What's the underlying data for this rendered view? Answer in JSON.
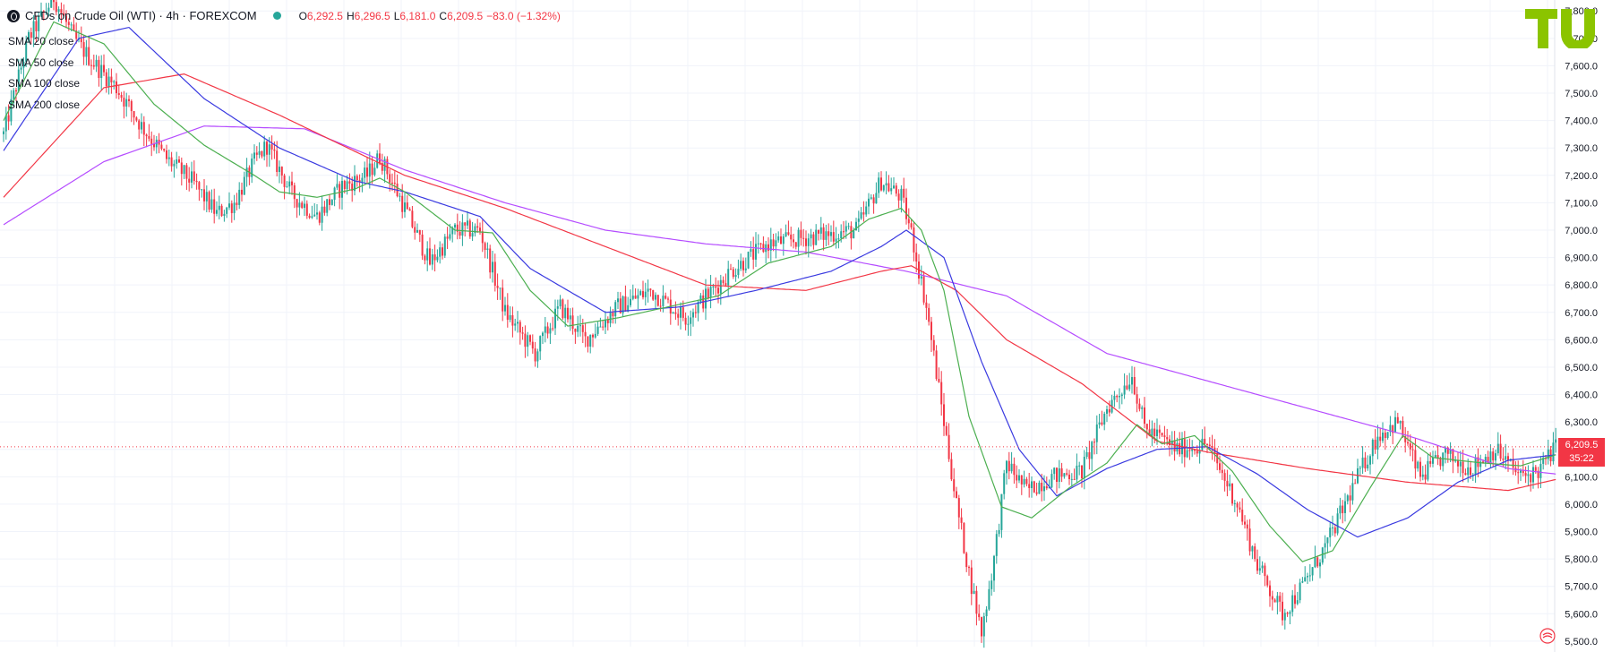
{
  "header": {
    "title": "CFDs on Crude Oil (WTI) · 4h · FOREXCOM",
    "ohlc": [
      {
        "key": "O",
        "value": "6,292.5"
      },
      {
        "key": "H",
        "value": "6,296.5"
      },
      {
        "key": "L",
        "value": "6,181.0"
      },
      {
        "key": "C",
        "value": "6,209.5"
      },
      {
        "key": "",
        "value": "−83.0 (−1.32%)"
      }
    ]
  },
  "legend": [
    "SMA 20 close",
    "SMA 50 close",
    "SMA 100 close",
    "SMA 200 close"
  ],
  "price_tag": {
    "price": "6,209.5",
    "countdown": "35:22"
  },
  "colors": {
    "up": "#26a69a",
    "down": "#f23645",
    "sma20": "#4caf50",
    "sma50": "#3a3ae0",
    "sma100": "#f23645",
    "sma200": "#b54cff",
    "grid": "#f0f3fa",
    "logo": "#8bc400"
  },
  "icons": {
    "logo": "tradingview-logo-icon",
    "settings": "chart-settings-icon"
  },
  "chart_data": {
    "type": "candlestick",
    "title": "CFDs on Crude Oil (WTI) · 4h · FOREXCOM",
    "ylim": [
      5480,
      7840
    ],
    "y_ticks": [
      5500,
      5600,
      5700,
      5800,
      5900,
      6000,
      6100,
      6200,
      6300,
      6400,
      6500,
      6600,
      6700,
      6800,
      6900,
      7000,
      7100,
      7200,
      7300,
      7400,
      7500,
      7600,
      7700,
      7800
    ],
    "y_tick_labels": [
      "5,500.0",
      "5,600.0",
      "5,700.0",
      "5,800.0",
      "5,900.0",
      "6,000.0",
      "6,100.0",
      "6,200.0",
      "6,300.0",
      "6,400.0",
      "6,500.0",
      "6,600.0",
      "6,700.0",
      "6,800.0",
      "6,900.0",
      "7,000.0",
      "7,100.0",
      "7,200.0",
      "7,300.0",
      "7,400.0",
      "7,500.0",
      "7,600.0",
      "7,700.0",
      "7,800.0"
    ],
    "last_price": 6209.5,
    "close_path": [
      [
        0,
        7350
      ],
      [
        10,
        7700
      ],
      [
        20,
        7850
      ],
      [
        28,
        7700
      ],
      [
        35,
        7620
      ],
      [
        45,
        7520
      ],
      [
        55,
        7380
      ],
      [
        65,
        7260
      ],
      [
        75,
        7180
      ],
      [
        85,
        7060
      ],
      [
        92,
        7100
      ],
      [
        100,
        7250
      ],
      [
        105,
        7310
      ],
      [
        115,
        7130
      ],
      [
        125,
        7050
      ],
      [
        135,
        7160
      ],
      [
        145,
        7200
      ],
      [
        150,
        7270
      ],
      [
        160,
        7080
      ],
      [
        170,
        6880
      ],
      [
        180,
        7000
      ],
      [
        190,
        7000
      ],
      [
        200,
        6700
      ],
      [
        212,
        6550
      ],
      [
        222,
        6720
      ],
      [
        232,
        6600
      ],
      [
        245,
        6720
      ],
      [
        258,
        6780
      ],
      [
        272,
        6680
      ],
      [
        290,
        6850
      ],
      [
        305,
        6950
      ],
      [
        325,
        6980
      ],
      [
        340,
        7000
      ],
      [
        350,
        7180
      ],
      [
        358,
        7120
      ],
      [
        362,
        6990
      ],
      [
        368,
        6720
      ],
      [
        375,
        6300
      ],
      [
        380,
        6000
      ],
      [
        385,
        5750
      ],
      [
        390,
        5530
      ],
      [
        395,
        5800
      ],
      [
        400,
        6150
      ],
      [
        408,
        6050
      ],
      [
        418,
        6100
      ],
      [
        430,
        6120
      ],
      [
        440,
        6350
      ],
      [
        450,
        6470
      ],
      [
        455,
        6280
      ],
      [
        468,
        6200
      ],
      [
        480,
        6220
      ],
      [
        492,
        6000
      ],
      [
        500,
        5780
      ],
      [
        510,
        5600
      ],
      [
        518,
        5700
      ],
      [
        528,
        5860
      ],
      [
        540,
        6100
      ],
      [
        548,
        6250
      ],
      [
        556,
        6300
      ],
      [
        565,
        6100
      ],
      [
        575,
        6180
      ],
      [
        585,
        6130
      ],
      [
        595,
        6200
      ],
      [
        605,
        6100
      ],
      [
        612,
        6120
      ],
      [
        619,
        6210
      ]
    ],
    "sma200_path": [
      [
        0,
        7020
      ],
      [
        40,
        7250
      ],
      [
        80,
        7380
      ],
      [
        120,
        7370
      ],
      [
        160,
        7220
      ],
      [
        200,
        7100
      ],
      [
        240,
        7000
      ],
      [
        280,
        6950
      ],
      [
        320,
        6920
      ],
      [
        360,
        6850
      ],
      [
        400,
        6760
      ],
      [
        440,
        6550
      ],
      [
        480,
        6450
      ],
      [
        520,
        6350
      ],
      [
        560,
        6250
      ],
      [
        600,
        6130
      ],
      [
        619,
        6110
      ]
    ],
    "sma100_path": [
      [
        0,
        7120
      ],
      [
        40,
        7520
      ],
      [
        72,
        7570
      ],
      [
        110,
        7420
      ],
      [
        160,
        7200
      ],
      [
        200,
        7080
      ],
      [
        240,
        6940
      ],
      [
        280,
        6800
      ],
      [
        320,
        6780
      ],
      [
        350,
        6850
      ],
      [
        362,
        6870
      ],
      [
        380,
        6780
      ],
      [
        400,
        6600
      ],
      [
        430,
        6440
      ],
      [
        460,
        6230
      ],
      [
        480,
        6190
      ],
      [
        520,
        6130
      ],
      [
        560,
        6080
      ],
      [
        600,
        6050
      ],
      [
        619,
        6090
      ]
    ],
    "sma50_path": [
      [
        0,
        7290
      ],
      [
        30,
        7700
      ],
      [
        50,
        7740
      ],
      [
        80,
        7480
      ],
      [
        110,
        7300
      ],
      [
        140,
        7180
      ],
      [
        160,
        7140
      ],
      [
        190,
        7050
      ],
      [
        210,
        6860
      ],
      [
        240,
        6700
      ],
      [
        270,
        6720
      ],
      [
        300,
        6780
      ],
      [
        330,
        6850
      ],
      [
        350,
        6940
      ],
      [
        360,
        7000
      ],
      [
        375,
        6900
      ],
      [
        390,
        6520
      ],
      [
        405,
        6200
      ],
      [
        420,
        6030
      ],
      [
        440,
        6130
      ],
      [
        460,
        6200
      ],
      [
        480,
        6210
      ],
      [
        500,
        6110
      ],
      [
        520,
        5980
      ],
      [
        540,
        5880
      ],
      [
        560,
        5950
      ],
      [
        580,
        6080
      ],
      [
        600,
        6160
      ],
      [
        619,
        6180
      ]
    ],
    "sma20_path": [
      [
        0,
        7400
      ],
      [
        20,
        7760
      ],
      [
        40,
        7680
      ],
      [
        60,
        7460
      ],
      [
        80,
        7310
      ],
      [
        100,
        7200
      ],
      [
        110,
        7140
      ],
      [
        125,
        7120
      ],
      [
        140,
        7150
      ],
      [
        150,
        7190
      ],
      [
        160,
        7140
      ],
      [
        180,
        7000
      ],
      [
        195,
        6990
      ],
      [
        210,
        6780
      ],
      [
        225,
        6650
      ],
      [
        245,
        6680
      ],
      [
        265,
        6720
      ],
      [
        285,
        6760
      ],
      [
        305,
        6880
      ],
      [
        330,
        6940
      ],
      [
        345,
        7040
      ],
      [
        358,
        7080
      ],
      [
        366,
        7000
      ],
      [
        375,
        6780
      ],
      [
        385,
        6320
      ],
      [
        398,
        5990
      ],
      [
        410,
        5950
      ],
      [
        425,
        6060
      ],
      [
        440,
        6150
      ],
      [
        452,
        6290
      ],
      [
        462,
        6220
      ],
      [
        475,
        6250
      ],
      [
        490,
        6120
      ],
      [
        505,
        5920
      ],
      [
        518,
        5790
      ],
      [
        530,
        5830
      ],
      [
        545,
        6060
      ],
      [
        558,
        6250
      ],
      [
        570,
        6170
      ],
      [
        590,
        6150
      ],
      [
        605,
        6140
      ],
      [
        619,
        6180
      ]
    ],
    "series": [
      {
        "name": "SMA 20 close"
      },
      {
        "name": "SMA 50 close"
      },
      {
        "name": "SMA 100 close"
      },
      {
        "name": "SMA 200 close"
      }
    ]
  }
}
